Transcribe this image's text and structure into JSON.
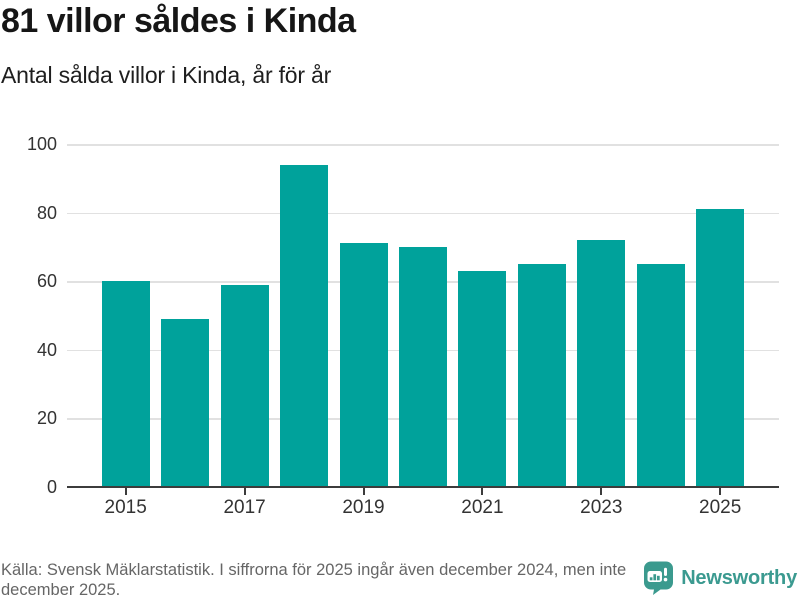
{
  "header": {
    "title": "81 villor såldes i Kinda",
    "subtitle": "Antal sålda villor i Kinda, år för år"
  },
  "chart_data": {
    "type": "bar",
    "categories": [
      "2015",
      "2016",
      "2017",
      "2018",
      "2019",
      "2020",
      "2021",
      "2022",
      "2023",
      "2024",
      "2025"
    ],
    "values": [
      60,
      49,
      59,
      94,
      71,
      70,
      63,
      65,
      72,
      65,
      81
    ],
    "title": "81 villor såldes i Kinda",
    "subtitle": "Antal sålda villor i Kinda, år för år",
    "xlabel": "",
    "ylabel": "",
    "ylim": [
      0,
      100
    ],
    "y_ticks": [
      0,
      20,
      40,
      60,
      80,
      100
    ],
    "x_tick_labels": [
      "2015",
      "2017",
      "2019",
      "2021",
      "2023",
      "2025"
    ],
    "grid": "horizontal",
    "legend": "none"
  },
  "colors": {
    "bar": "#00a29b",
    "gridline": "#e1e1e1",
    "axis": "#3c3c3c",
    "tick_label": "#333333",
    "brand_teal": "#3b9a90"
  },
  "footer": {
    "source_text": "Källa: Svensk Mäklarstatistik. I siffrorna för 2025 ingår även december 2024, men inte december 2025.",
    "brand": {
      "name": "Newsworthy",
      "icon": "newsworthy-speech-bubble-bar-chart-icon"
    }
  }
}
